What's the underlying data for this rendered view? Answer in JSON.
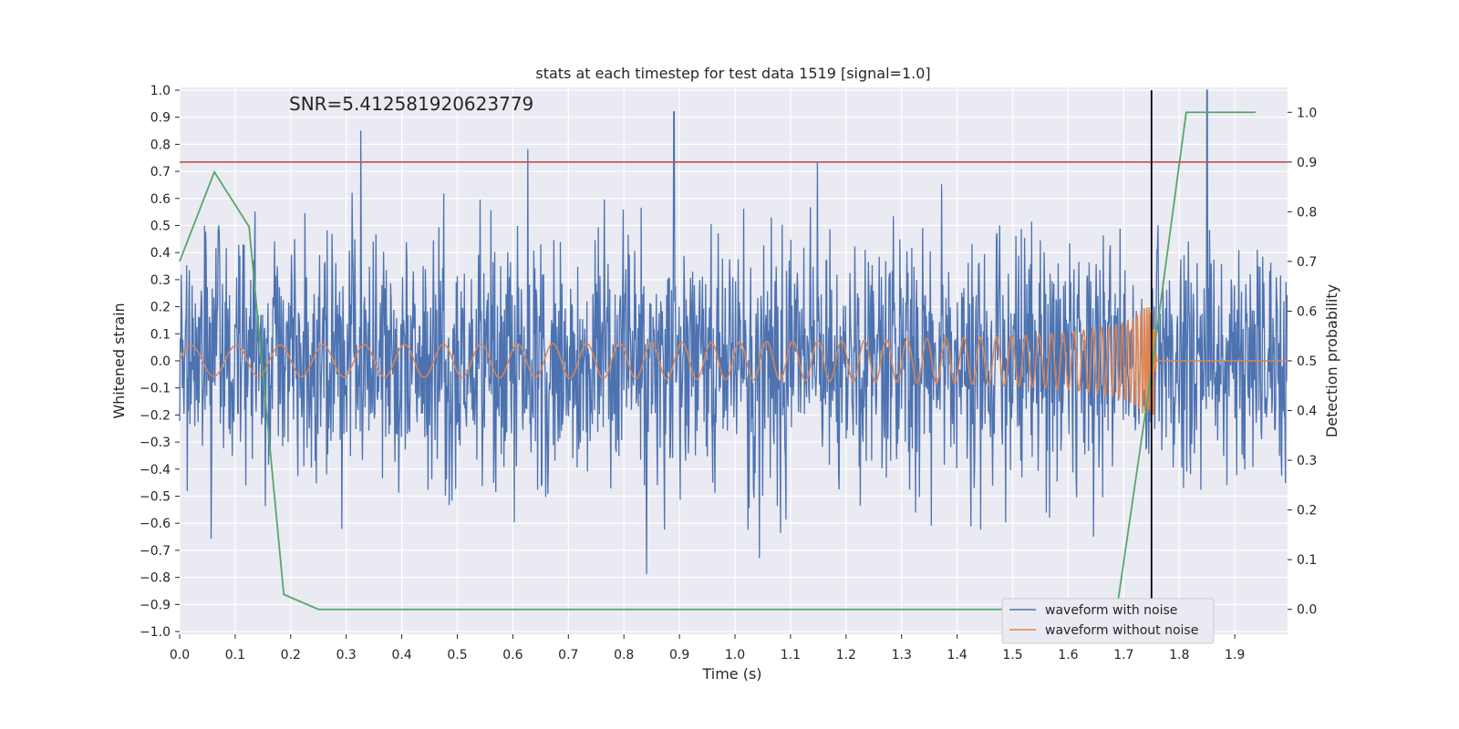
{
  "chart_data": {
    "type": "line",
    "title": "stats at each timestep for test data 1519 [signal=1.0]",
    "annotation": "SNR=5.412581920623779",
    "xlabel": "Time (s)",
    "ylabel": "Whitened strain",
    "y2label": "Detection probability",
    "xlim": [
      0.0,
      1.995
    ],
    "ylim": [
      -1.01,
      1.01
    ],
    "y2lim": [
      -0.05,
      1.05
    ],
    "xticks": [
      "0.0",
      "0.1",
      "0.2",
      "0.3",
      "0.4",
      "0.5",
      "0.6",
      "0.7",
      "0.8",
      "0.9",
      "1.0",
      "1.1",
      "1.2",
      "1.3",
      "1.4",
      "1.5",
      "1.6",
      "1.7",
      "1.8",
      "1.9"
    ],
    "yticks": [
      "1.0",
      "0.9",
      "0.8",
      "0.7",
      "0.6",
      "0.5",
      "0.4",
      "0.3",
      "0.2",
      "0.1",
      "0.0",
      "−0.1",
      "−0.2",
      "−0.3",
      "−0.4",
      "−0.5",
      "−0.6",
      "−0.7",
      "−0.8",
      "−0.9",
      "−1.0"
    ],
    "y2ticks": [
      "1.0",
      "0.9",
      "0.8",
      "0.7",
      "0.6",
      "0.5",
      "0.4",
      "0.3",
      "0.2",
      "0.1",
      "0.0"
    ],
    "grid": true,
    "legend_position": "lower-right",
    "series": [
      {
        "name": "waveform with noise",
        "color": "#4c72b0",
        "axis": "left",
        "description_values": "noise approx. in [-0.9, 1.0]"
      },
      {
        "name": "waveform without noise",
        "color": "#dd8452",
        "axis": "left",
        "chirp": {
          "start_amplitude": 0.02,
          "peak_amplitude": 0.2,
          "merger_time": 1.755,
          "ringdown_end": 1.76
        }
      },
      {
        "name": "",
        "color": "#55a868",
        "axis": "right",
        "x": [
          0.0,
          0.0625,
          0.125,
          0.1875,
          0.25,
          0.3125,
          0.375,
          0.4375,
          0.5,
          0.5625,
          0.625,
          0.6875,
          0.75,
          0.8125,
          0.875,
          0.9375,
          1.0,
          1.0625,
          1.125,
          1.1875,
          1.25,
          1.3125,
          1.375,
          1.4375,
          1.5,
          1.5625,
          1.625,
          1.6875,
          1.75,
          1.8125,
          1.875,
          1.9375
        ],
        "y": [
          0.7,
          0.88,
          0.77,
          0.03,
          0.0,
          0.0,
          0.0,
          0.0,
          0.0,
          0.0,
          0.0,
          0.0,
          0.0,
          0.0,
          0.0,
          0.0,
          0.0,
          0.0,
          0.0,
          0.0,
          0.0,
          0.0,
          0.0,
          0.0,
          0.0,
          0.0,
          0.0,
          0.0,
          0.48,
          1.0,
          1.0,
          1.0
        ]
      }
    ],
    "threshold": {
      "value": 0.9,
      "axis": "right",
      "color": "#c44e52"
    },
    "marker_line": {
      "x": 1.75,
      "color": "#000000"
    }
  }
}
